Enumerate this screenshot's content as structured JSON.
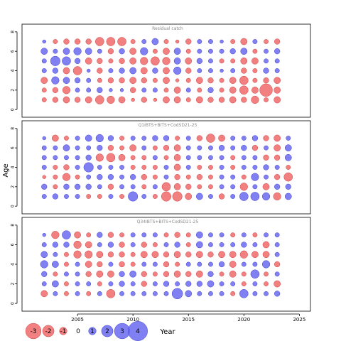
{
  "chart_data": {
    "type": "scatter",
    "subtype": "bubble-residuals",
    "xlabel": "Year",
    "ylabel": "Age",
    "x_ticks": [
      2005,
      2010,
      2015,
      2020,
      2025
    ],
    "x_range": [
      2000,
      2026
    ],
    "y_ticks": [
      0,
      2,
      4,
      6,
      8
    ],
    "y_range": [
      -0.5,
      8.5
    ],
    "legend": {
      "placement": "bottom-left",
      "title": "Year",
      "entries": [
        {
          "label": "-3",
          "value": -3
        },
        {
          "label": "-2",
          "value": -2
        },
        {
          "label": "-1",
          "value": -1
        },
        {
          "label": "0",
          "value": 0
        },
        {
          "label": "1",
          "value": 1
        },
        {
          "label": "2",
          "value": 2
        },
        {
          "label": "3",
          "value": 3
        },
        {
          "label": "4",
          "value": 4
        }
      ]
    },
    "colors": {
      "positive": "#6a6af0",
      "negative": "#f06a6a"
    },
    "panels": [
      {
        "title": "Residual catch",
        "years": [
          2002,
          2003,
          2004,
          2005,
          2006,
          2007,
          2008,
          2009,
          2010,
          2011,
          2012,
          2013,
          2014,
          2015,
          2016,
          2017,
          2018,
          2019,
          2020,
          2021,
          2022,
          2023
        ],
        "ages": [
          1,
          2,
          3,
          4,
          5,
          6,
          7
        ],
        "residuals": [
          [
            -0.3,
            -0.4,
            -0.5,
            -0.4,
            -0.5,
            -0.7,
            -0.6,
            -0.5,
            -0.2,
            -0.4,
            -0.2,
            -0.5,
            -0.5,
            -0.3,
            -0.5,
            -0.4,
            -0.4,
            -0.5,
            -0.4,
            -0.6,
            -0.3,
            -0.5
          ],
          [
            -0.3,
            -0.4,
            -0.6,
            0.3,
            0.3,
            0.4,
            0.2,
            0.2,
            -0.4,
            0.3,
            0.3,
            -0.3,
            -0.5,
            0.3,
            -0.3,
            0.4,
            -0.3,
            -0.5,
            -0.7,
            -0.5,
            -1.1,
            -0.5
          ],
          [
            -0.5,
            0.6,
            0.5,
            0.4,
            0.3,
            -0.3,
            -0.4,
            -0.4,
            -0.5,
            -0.4,
            -0.3,
            -0.5,
            -0.2,
            -0.3,
            -0.5,
            -0.4,
            -0.3,
            -0.5,
            -0.7,
            -0.3,
            -0.4,
            -0.5
          ],
          [
            0.3,
            0.4,
            -0.5,
            -0.7,
            0.2,
            -0.4,
            0.3,
            0.4,
            0.5,
            -0.5,
            0.4,
            -0.5,
            0.6,
            -0.4,
            0.3,
            0.3,
            0.2,
            0.3,
            -0.4,
            -0.3,
            0.4,
            0.3
          ],
          [
            0.3,
            0.8,
            0.7,
            0.4,
            -0.5,
            -0.4,
            -0.3,
            -0.4,
            -0.5,
            -0.6,
            -0.7,
            -0.6,
            0.5,
            -0.5,
            0.4,
            0.3,
            -0.3,
            -0.3,
            -0.5,
            -0.5,
            0.3,
            0.3
          ],
          [
            0.5,
            0.3,
            0.5,
            0.6,
            0.5,
            0.3,
            -0.4,
            0.4,
            -0.5,
            0.6,
            -0.3,
            -0.5,
            0.5,
            -0.3,
            0.3,
            0.3,
            0.3,
            0.4,
            0.5,
            -0.3,
            0.3,
            0.4
          ],
          [
            0.2,
            -0.3,
            -0.4,
            -0.4,
            -0.4,
            -0.7,
            -0.7,
            -0.7,
            -0.3,
            0.3,
            0.5,
            -0.3,
            -0.2,
            -0.4,
            0.3,
            0.3,
            0.2,
            -0.3,
            -0.5,
            0.3,
            -0.3,
            -0.4
          ]
        ]
      },
      {
        "title": "Q1IBTS+BITS+CodSD21-25",
        "years": [
          2002,
          2003,
          2004,
          2005,
          2006,
          2007,
          2008,
          2009,
          2010,
          2011,
          2012,
          2013,
          2014,
          2015,
          2016,
          2017,
          2018,
          2019,
          2020,
          2021,
          2022,
          2023,
          2024
        ],
        "ages": [
          1,
          2,
          3,
          4,
          5,
          6,
          7
        ],
        "residuals": [
          [
            0.3,
            0.4,
            0.3,
            0.3,
            -0.3,
            -0.3,
            0.3,
            -0.3,
            0.8,
            0.3,
            -0.3,
            -0.8,
            -0.8,
            -0.5,
            0.5,
            0.3,
            -0.4,
            0.3,
            0.7,
            0.7,
            0.6,
            -0.6,
            0.5
          ],
          [
            0.4,
            -0.3,
            0.4,
            0.4,
            0.4,
            0.3,
            -0.4,
            0.3,
            0.3,
            -0.3,
            0.3,
            -0.7,
            -0.5,
            -0.4,
            -0.3,
            -0.3,
            0.3,
            0.3,
            -0.6,
            0.3,
            -0.5,
            0.4,
            0.4
          ],
          [
            -0.2,
            -0.3,
            -0.6,
            -0.3,
            0.3,
            0.4,
            0.4,
            0.3,
            0.4,
            -0.4,
            -0.3,
            0.3,
            -0.4,
            -0.3,
            -0.4,
            -0.3,
            0.3,
            0.3,
            -0.3,
            0.6,
            0.3,
            -0.4,
            -0.7
          ],
          [
            0.3,
            -0.3,
            -0.4,
            0.3,
            0.8,
            0.3,
            0.3,
            0.3,
            -0.3,
            -0.3,
            -0.3,
            0.3,
            -0.5,
            0.3,
            -0.3,
            -0.3,
            0.3,
            -0.3,
            0.3,
            0.3,
            0.4,
            0.3,
            -0.3
          ],
          [
            0.3,
            0.3,
            0.3,
            0.3,
            0.4,
            -0.6,
            -0.7,
            -0.5,
            -0.3,
            -0.3,
            0.3,
            -0.3,
            -0.5,
            0.3,
            0.3,
            0.3,
            0.3,
            -0.3,
            0.3,
            0.3,
            -0.4,
            -0.4,
            0.5
          ],
          [
            0.3,
            0.3,
            0.5,
            0.3,
            0.3,
            0.4,
            -0.4,
            -0.3,
            -0.5,
            0.3,
            -0.3,
            -0.4,
            -0.5,
            0.3,
            0.3,
            0.3,
            0.4,
            0.3,
            0.4,
            -0.4,
            0.3,
            -0.5,
            0.5
          ],
          [
            0.2,
            -0.5,
            -0.3,
            0.3,
            0.5,
            0.6,
            0.4,
            -0.3,
            0.3,
            0.3,
            0.4,
            0.4,
            -0.3,
            0.3,
            -0.4,
            -0.7,
            -0.5,
            0.3,
            0.3,
            0.4,
            -0.4,
            -0.5,
            0.3
          ]
        ]
      },
      {
        "title": "Q34IBTS+BITS+CodSD21-25",
        "years": [
          2002,
          2003,
          2004,
          2005,
          2006,
          2007,
          2008,
          2009,
          2010,
          2011,
          2012,
          2013,
          2014,
          2015,
          2016,
          2017,
          2018,
          2019,
          2020,
          2021,
          2022,
          2023
        ],
        "ages": [
          1,
          2,
          3,
          4,
          5,
          6,
          7
        ],
        "residuals": [
          [
            -0.5,
            0.3,
            -0.3,
            0.3,
            -0.3,
            0.3,
            -0.7,
            0.3,
            0.3,
            0.3,
            0.3,
            0.3,
            0.9,
            0.5,
            0.3,
            0.3,
            0.3,
            -0.3,
            0.7,
            0.3,
            0.3,
            0.4
          ],
          [
            0.3,
            0.5,
            -0.3,
            0.3,
            0.3,
            -0.3,
            0.3,
            0.4,
            0.3,
            -0.4,
            0.3,
            0.4,
            0.3,
            0.4,
            0.4,
            0.5,
            0.3,
            0.3,
            -0.3,
            0.3,
            -0.3,
            -0.5
          ],
          [
            0.4,
            -0.3,
            0.3,
            0.3,
            -0.4,
            -0.5,
            -0.5,
            0.4,
            0.5,
            -0.4,
            -0.3,
            -0.4,
            -0.5,
            -0.4,
            -0.5,
            0.4,
            -0.3,
            -0.5,
            -0.3,
            0.7,
            -0.3,
            0.3
          ],
          [
            0.6,
            0.5,
            -0.3,
            0.3,
            -0.5,
            -0.4,
            0.3,
            -0.4,
            -0.3,
            0.3,
            0.3,
            -0.4,
            -0.3,
            0.3,
            0.3,
            0.3,
            0.4,
            -0.5,
            0.3,
            0.3,
            0.6,
            -0.4
          ],
          [
            0.5,
            0.3,
            -0.3,
            -0.6,
            -0.6,
            -0.5,
            -0.4,
            -0.4,
            -0.3,
            -0.5,
            -0.5,
            -0.4,
            -0.5,
            -0.4,
            -0.5,
            -0.4,
            -0.5,
            -0.5,
            -0.6,
            -0.5,
            -0.5,
            0.3
          ],
          [
            0.3,
            0.4,
            0.4,
            -0.6,
            -0.5,
            0.3,
            0.4,
            -0.4,
            0.3,
            -0.4,
            -0.3,
            0.3,
            0.4,
            -0.3,
            0.5,
            0.3,
            0.3,
            0.3,
            0.4,
            0.3,
            -0.5,
            0.3
          ],
          [
            0.2,
            -0.6,
            0.7,
            -0.5,
            -0.3,
            0.4,
            -0.4,
            -0.3,
            0.3,
            0.3,
            0.3,
            -0.3,
            -0.4,
            -0.3,
            0.5,
            0.3,
            0.3,
            -0.3,
            0.3,
            -0.3,
            0.3,
            0.3
          ]
        ]
      }
    ]
  }
}
